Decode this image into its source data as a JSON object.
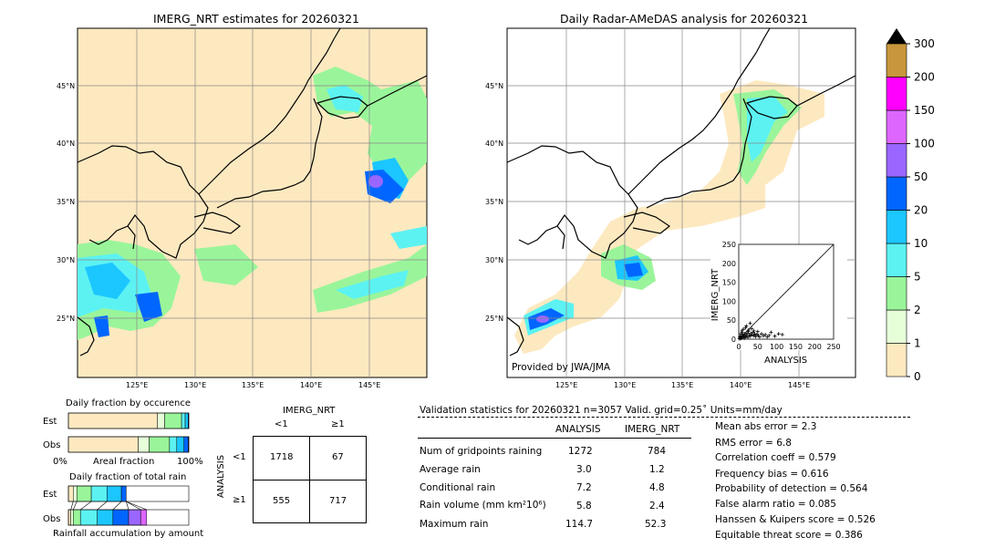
{
  "maps": {
    "left_title": "IMERG_NRT estimates for 20260321",
    "right_title": "Daily Radar-AMeDAS analysis for 20260321",
    "lat_ticks": [
      "45°N",
      "40°N",
      "35°N",
      "30°N",
      "25°N"
    ],
    "lon_ticks": [
      "125°E",
      "130°E",
      "135°E",
      "140°E",
      "145°E"
    ],
    "credit": "Provided by JWA/JMA"
  },
  "colorbar": {
    "levels": [
      "0",
      "1",
      "2",
      "5",
      "10",
      "20",
      "50",
      "100",
      "150",
      "200",
      "300"
    ],
    "colors": [
      "#fde9c0",
      "#e6ffd9",
      "#9af59a",
      "#5cf2f2",
      "#1cc6ff",
      "#0066ff",
      "#9966ff",
      "#dd66ff",
      "#ff00ff",
      "#c8963c"
    ]
  },
  "inset_scatter": {
    "xlabel": "ANALYSIS",
    "ylabel": "IMERG_NRT",
    "ticks": [
      "0",
      "50",
      "100",
      "150",
      "200",
      "250"
    ]
  },
  "fractions": {
    "occurrence_title": "Daily fraction by occurence",
    "total_title": "Daily fraction of total rain",
    "est": "Est",
    "obs": "Obs",
    "axis_left": "0%",
    "axis_mid": "Areal fraction",
    "axis_right": "100%",
    "accum_caption": "Rainfall accumulation by amount"
  },
  "contingency": {
    "title": "IMERG_NRT",
    "col_lt": "<1",
    "col_ge": "≥1",
    "row_lt": "<1",
    "row_ge": "≥1",
    "row_axis": "ANALYSIS",
    "cells": [
      "1718",
      "67",
      "555",
      "717"
    ]
  },
  "validation": {
    "header": "Validation statistics for 20260321  n=3057 Valid. grid=0.25˚ Units=mm/day",
    "col_analysis": "ANALYSIS",
    "col_imerg": "IMERG_NRT",
    "rows": [
      {
        "label": "Num of gridpoints raining",
        "a": "1272",
        "b": "784"
      },
      {
        "label": "Average rain",
        "a": "3.0",
        "b": "1.2"
      },
      {
        "label": "Conditional rain",
        "a": "7.2",
        "b": "4.8"
      },
      {
        "label": "Rain volume (mm km²10⁶)",
        "a": "5.8",
        "b": "2.4"
      },
      {
        "label": "Maximum rain",
        "a": "114.7",
        "b": "52.3"
      }
    ],
    "scores": [
      "Mean abs error =    2.3",
      "RMS error =    6.8",
      "Correlation coeff =  0.579",
      "Frequency bias =  0.616",
      "Probability of detection =  0.564",
      "False alarm ratio =  0.085",
      "Hanssen & Kuipers score =  0.526",
      "Equitable threat score =  0.386"
    ]
  },
  "chart_data": [
    {
      "type": "table",
      "title": "IMERG_NRT",
      "rows_label": "ANALYSIS",
      "columns": [
        "<1",
        "≥1"
      ],
      "rows": [
        "<1",
        "≥1"
      ],
      "values": [
        [
          1718,
          67
        ],
        [
          555,
          717
        ]
      ]
    },
    {
      "type": "bar",
      "title": "Daily fraction by occurence",
      "categories": [
        "Est",
        "Obs"
      ],
      "series": [
        {
          "name": "0-1",
          "values": [
            0.74,
            0.58
          ]
        },
        {
          "name": "1-2",
          "values": [
            0.06,
            0.09
          ]
        },
        {
          "name": "2-5",
          "values": [
            0.14,
            0.17
          ]
        },
        {
          "name": "5-10",
          "values": [
            0.03,
            0.06
          ]
        },
        {
          "name": "10-20",
          "values": [
            0.025,
            0.06
          ]
        },
        {
          "name": "20-50",
          "values": [
            0.005,
            0.035
          ]
        },
        {
          "name": "50-100",
          "values": [
            0,
            0.005
          ]
        }
      ]
    },
    {
      "type": "bar",
      "title": "Daily fraction of total rain",
      "categories": [
        "Est",
        "Obs"
      ],
      "series": [
        {
          "name": "0-1",
          "values": [
            0.04,
            0.02
          ]
        },
        {
          "name": "1-2",
          "values": [
            0.03,
            0.02
          ]
        },
        {
          "name": "2-5",
          "values": [
            0.12,
            0.06
          ]
        },
        {
          "name": "5-10",
          "values": [
            0.13,
            0.14
          ]
        },
        {
          "name": "10-20",
          "values": [
            0.12,
            0.13
          ]
        },
        {
          "name": "20-50",
          "values": [
            0.04,
            0.13
          ]
        },
        {
          "name": "50-100",
          "values": [
            0,
            0.1
          ]
        },
        {
          "name": "100-150",
          "values": [
            0,
            0.05
          ]
        }
      ]
    },
    {
      "type": "scatter",
      "xlabel": "ANALYSIS",
      "ylabel": "IMERG_NRT",
      "xlim": [
        0,
        250
      ],
      "ylim": [
        0,
        250
      ],
      "points": [
        [
          2,
          1
        ],
        [
          4,
          3
        ],
        [
          5,
          8
        ],
        [
          6,
          2
        ],
        [
          8,
          5
        ],
        [
          10,
          12
        ],
        [
          12,
          6
        ],
        [
          14,
          9
        ],
        [
          15,
          3
        ],
        [
          16,
          14
        ],
        [
          18,
          7
        ],
        [
          20,
          10
        ],
        [
          22,
          16
        ],
        [
          24,
          5
        ],
        [
          25,
          20
        ],
        [
          28,
          12
        ],
        [
          30,
          8
        ],
        [
          32,
          15
        ],
        [
          35,
          11
        ],
        [
          38,
          18
        ],
        [
          40,
          9
        ],
        [
          42,
          14
        ],
        [
          45,
          7
        ],
        [
          48,
          12
        ],
        [
          52,
          10
        ],
        [
          55,
          6
        ],
        [
          60,
          14
        ],
        [
          65,
          9
        ],
        [
          70,
          12
        ],
        [
          75,
          6
        ],
        [
          80,
          10
        ],
        [
          85,
          18
        ],
        [
          95,
          8
        ],
        [
          105,
          14
        ],
        [
          115,
          12
        ],
        [
          8,
          22
        ],
        [
          12,
          26
        ],
        [
          18,
          30
        ],
        [
          26,
          24
        ],
        [
          34,
          28
        ],
        [
          20,
          35
        ],
        [
          30,
          42
        ],
        [
          9,
          18
        ],
        [
          5,
          14
        ],
        [
          3,
          6
        ],
        [
          40,
          22
        ],
        [
          50,
          20
        ]
      ]
    }
  ]
}
